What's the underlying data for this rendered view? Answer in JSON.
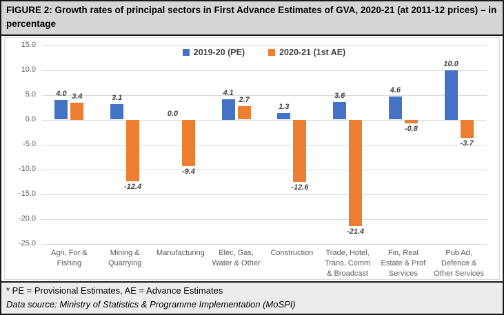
{
  "figure": {
    "title": "FIGURE 2: Growth rates of principal sectors in First Advance Estimates of GVA, 2020-21 (at 2011-12 prices) – in percentage"
  },
  "footnotes": {
    "pe_note": "* PE = Provisional Estimates, AE = Advance Estimates",
    "source": "Data source: Ministry of Statistics & Programme Implementation (MoSPI)"
  },
  "chart_data": {
    "type": "bar",
    "title": "Growth rates of principal sectors in First Advance Estimates of GVA, 2020-21 (at 2011-12 prices) – in percentage",
    "categories": [
      "Agri, For &\nFishing",
      "Mining &\nQuarrying",
      "Manufacturing",
      "Elec, Gas,\nWater & Other",
      "Construction",
      "Trade, Hotel,\nTrans, Comm\n& Broadcast",
      "Fin, Real\nEstate & Prof\nServices",
      "Pub Ad,\nDefence &\nOther Services"
    ],
    "series": [
      {
        "name": "2019-20 (PE)",
        "color": "#4472C4",
        "values": [
          4.0,
          3.1,
          0.0,
          4.1,
          1.3,
          3.6,
          4.6,
          10.0
        ]
      },
      {
        "name": "2020-21 (1st AE)",
        "color": "#ED7D31",
        "values": [
          3.4,
          -12.4,
          -9.4,
          2.7,
          -12.6,
          -21.4,
          -0.8,
          -3.7
        ]
      }
    ],
    "xlabel": "",
    "ylabel": "",
    "ylim": [
      -25,
      15
    ],
    "yticks": [
      15.0,
      10.0,
      5.0,
      0.0,
      -5.0,
      -10.0,
      -15.0,
      -20.0,
      -25.0
    ],
    "value_label_decimals": 1,
    "grid": true,
    "legend_position": "top-center-inside",
    "colors": {
      "gridline": "#d9d9d9",
      "tick_label": "#595959",
      "data_label": "#404040"
    }
  }
}
